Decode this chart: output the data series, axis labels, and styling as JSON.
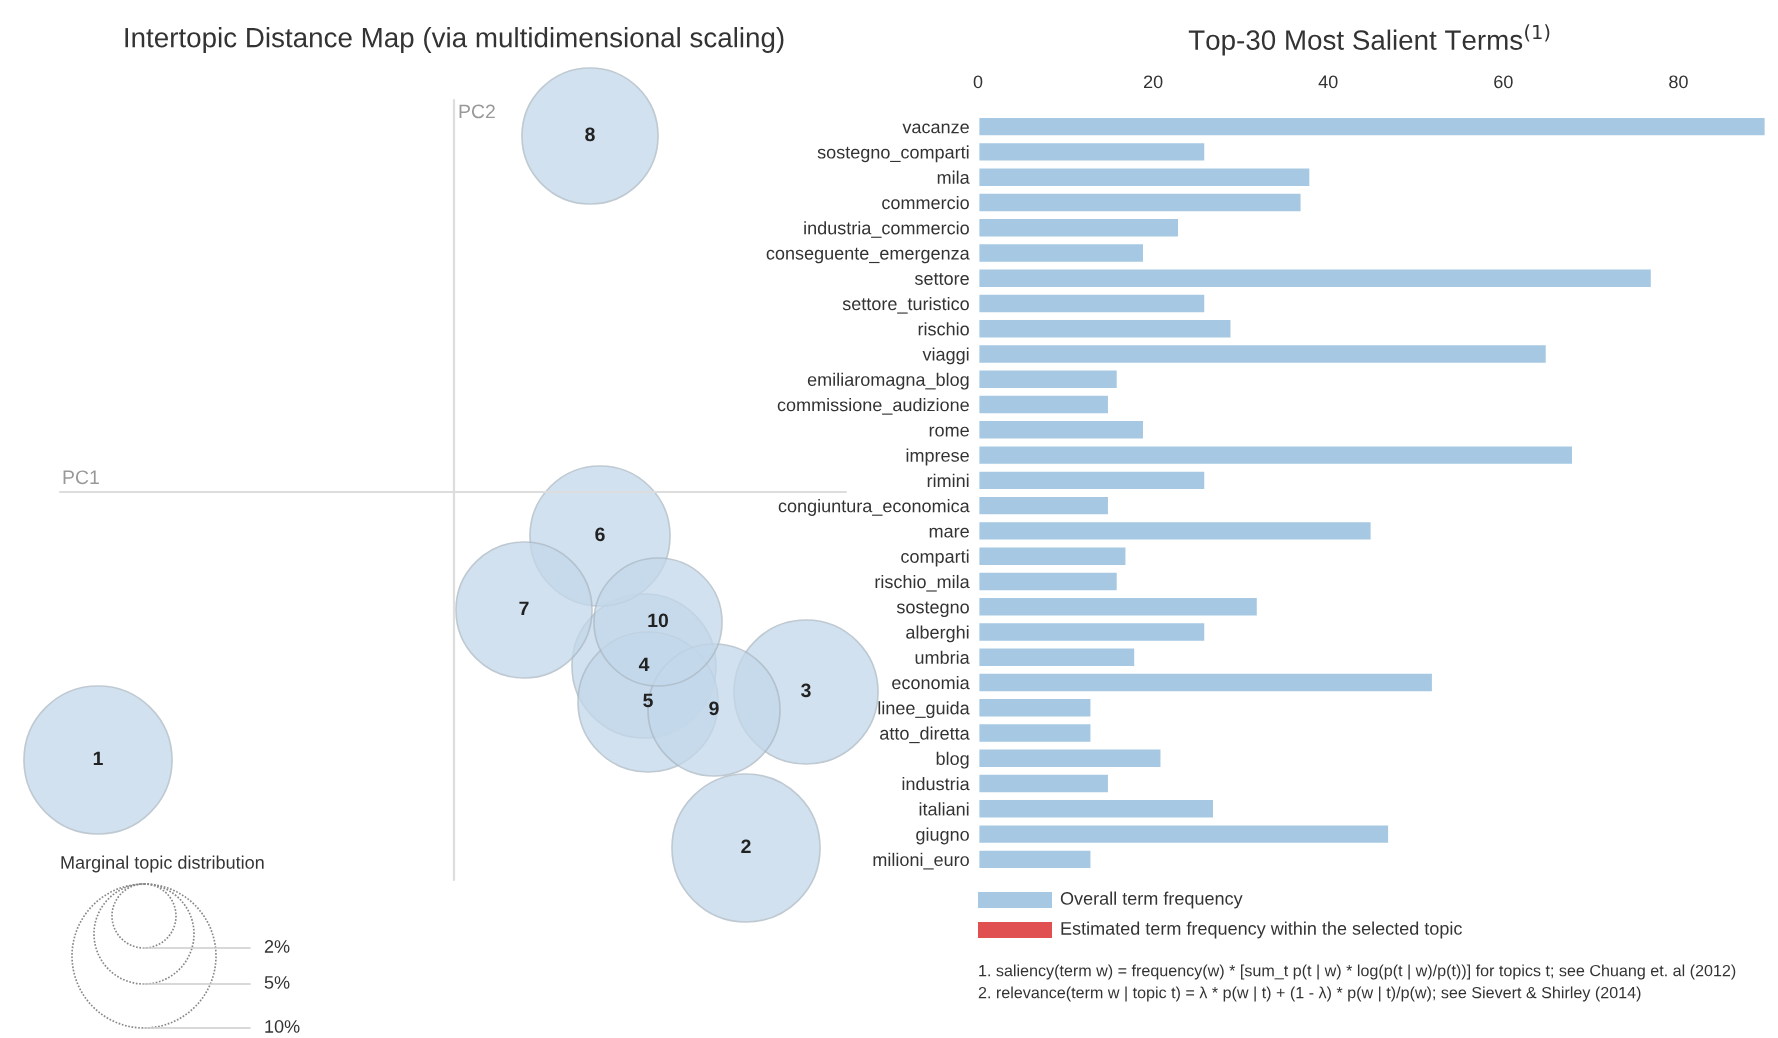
{
  "chart_data": [
    {
      "type": "other",
      "title": "Intertopic Distance Map (via multidimensional scaling)",
      "xlabel": "PC1",
      "ylabel": "PC2",
      "legend_title": "Marginal topic distribution",
      "annotations": [
        "1",
        "2",
        "3",
        "4",
        "5",
        "6",
        "7",
        "8",
        "9",
        "10",
        "2%",
        "5%",
        "10%"
      ]
    },
    {
      "type": "bar",
      "orientation": "horizontal",
      "title": "Top-30 Most Salient Terms$^{(1)}$",
      "xlim": [
        0,
        90
      ],
      "xticks": [
        0,
        20,
        40,
        60,
        80
      ],
      "legend": "bottom",
      "categories": [
        "vacanze",
        "sostegno_comparti",
        "mila",
        "commercio",
        "industria_commercio",
        "conseguente_emergenza",
        "settore",
        "settore_turistico",
        "rischio",
        "viaggi",
        "emiliaromagna_blog",
        "commissione_audizione",
        "rome",
        "imprese",
        "rimini",
        "congiuntura_economica",
        "mare",
        "comparti",
        "rischio_mila",
        "sostegno",
        "alberghi",
        "umbria",
        "economia",
        "linee_guida",
        "atto_diretta",
        "blog",
        "industria",
        "italiani",
        "giugno",
        "milioni_euro"
      ],
      "series": [
        {
          "name": "Overall term frequency",
          "color": "#a6c8e2",
          "values": [
            90,
            26,
            38,
            37,
            23,
            19,
            77,
            26,
            29,
            65,
            16,
            15,
            19,
            68,
            26,
            15,
            45,
            17,
            16,
            32,
            26,
            18,
            52,
            13,
            13,
            21,
            15,
            27,
            47,
            13
          ]
        },
        {
          "name": "Estimated term frequency within the selected topic",
          "color": "#e05050",
          "values": [
            null,
            null,
            null,
            null,
            null,
            null,
            null,
            null,
            null,
            null,
            null,
            null,
            null,
            null,
            null,
            null,
            null,
            null,
            null,
            null,
            null,
            null,
            null,
            null,
            null,
            null,
            null,
            null,
            null,
            null
          ]
        }
      ],
      "annotations": [
        "1. saliency(term w) = frequency(w) * [sum_t p(t | w) * log(p(t | w)/p(t))] for topics t; see Chuang et. al (2012)",
        "2. relevance(term w | topic t) = λ * p(w | t) + (1 - λ) * p(w | t)/p(w); see Sievert & Shirley (2014)"
      ]
    }
  ]
}
